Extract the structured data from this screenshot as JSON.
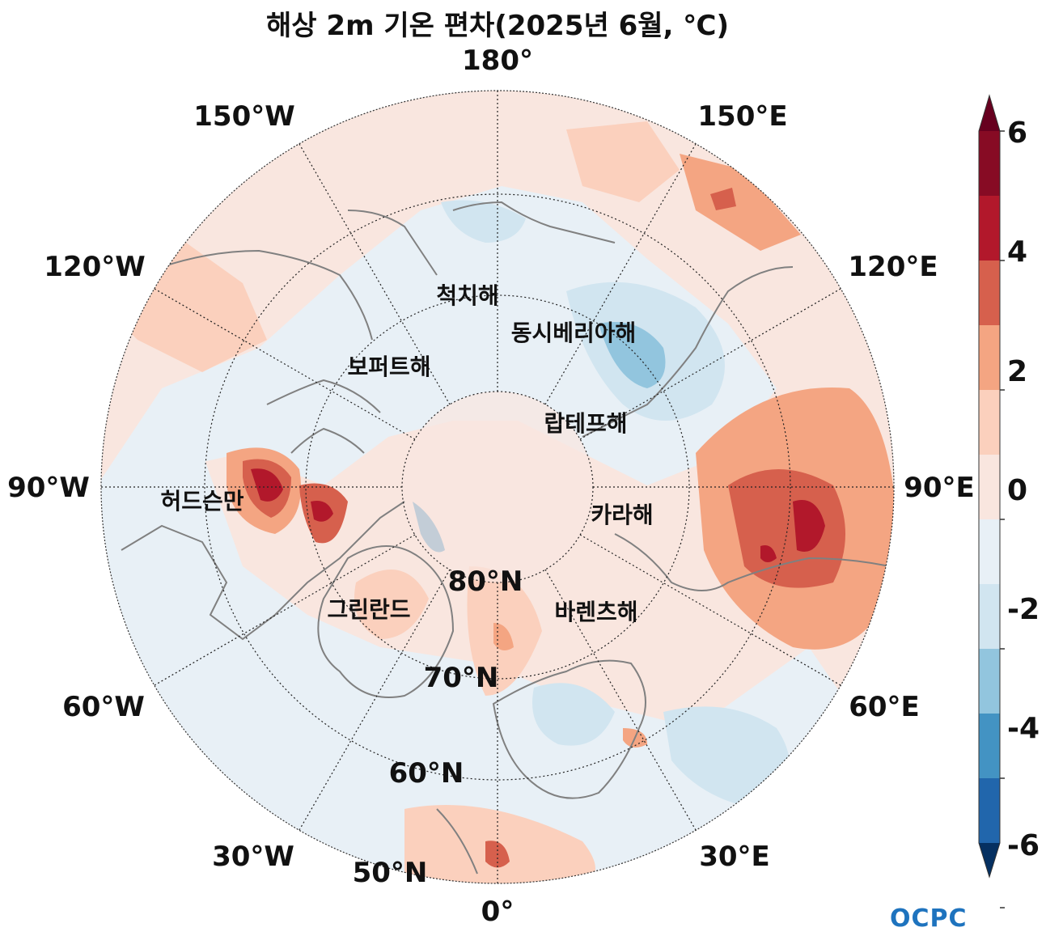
{
  "title": "해상 2m 기온 편차(2025년 6월, ℃)",
  "longitude_labels": {
    "lon_180": "180°",
    "lon_150w": "150°W",
    "lon_150e": "150°E",
    "lon_120w": "120°W",
    "lon_120e": "120°E",
    "lon_90w": "90°W",
    "lon_90e": "90°E",
    "lon_60w": "60°W",
    "lon_60e": "60°E",
    "lon_30w": "30°W",
    "lon_30e": "30°E",
    "lon_0": "0°"
  },
  "latitude_labels": {
    "lat_80": "80°N",
    "lat_70": "70°N",
    "lat_60": "60°N",
    "lat_50": "50°N"
  },
  "region_labels": {
    "chukchi": "척치해",
    "east_siberian": "동시베리아해",
    "beaufort": "보퍼트해",
    "laptev": "랍테프해",
    "hudson": "허드슨만",
    "kara": "카라해",
    "greenland": "그린란드",
    "barents": "바렌츠해"
  },
  "colorbar": {
    "tick_labels": [
      "6",
      "4",
      "2",
      "0",
      "-2",
      "-4",
      "-6"
    ],
    "colors": [
      "#67001f",
      "#870b24",
      "#b2182b",
      "#d6604d",
      "#f4a582",
      "#fbd0bd",
      "#f9e6df",
      "#e8f0f6",
      "#d1e5f0",
      "#92c5de",
      "#4393c3",
      "#2166ac",
      "#053061"
    ]
  },
  "logo": "OCPC"
}
